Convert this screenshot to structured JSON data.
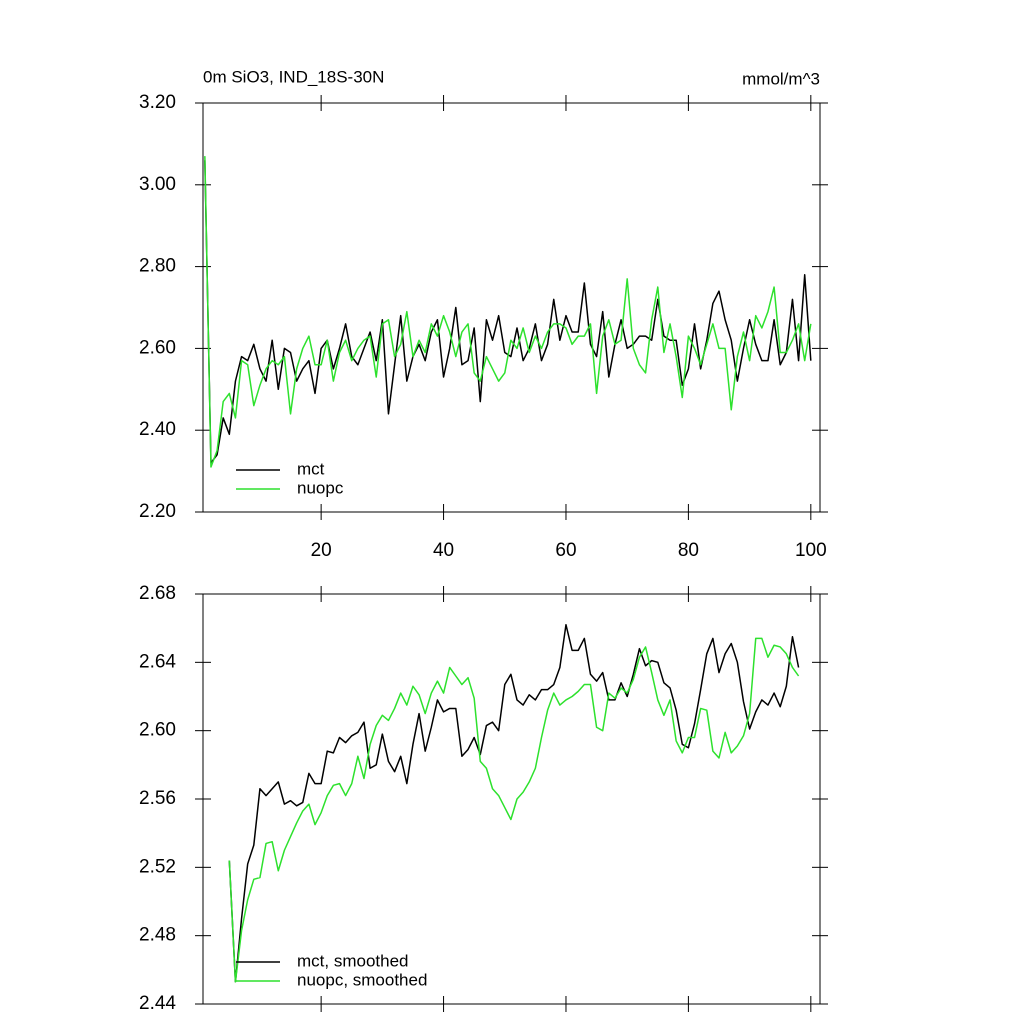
{
  "chart_data": [
    {
      "type": "line",
      "title": "0m SiO3, IND_18S-30N",
      "units": "mmol/m^3",
      "x": [
        1,
        2,
        3,
        4,
        5,
        6,
        7,
        8,
        9,
        10,
        11,
        12,
        13,
        14,
        15,
        16,
        17,
        18,
        19,
        20,
        21,
        22,
        23,
        24,
        25,
        26,
        27,
        28,
        29,
        30,
        31,
        32,
        33,
        34,
        35,
        36,
        37,
        38,
        39,
        40,
        41,
        42,
        43,
        44,
        45,
        46,
        47,
        48,
        49,
        50,
        51,
        52,
        53,
        54,
        55,
        56,
        57,
        58,
        59,
        60,
        61,
        62,
        63,
        64,
        65,
        66,
        67,
        68,
        69,
        70,
        71,
        72,
        73,
        74,
        75,
        76,
        77,
        78,
        79,
        80,
        81,
        82,
        83,
        84,
        85,
        86,
        87,
        88,
        89,
        90,
        91,
        92,
        93,
        94,
        95,
        96,
        97,
        98,
        99,
        100
      ],
      "series": [
        {
          "name": "mct",
          "color": "#000000",
          "values": [
            3.06,
            2.32,
            2.34,
            2.43,
            2.39,
            2.52,
            2.58,
            2.57,
            2.61,
            2.55,
            2.52,
            2.62,
            2.5,
            2.6,
            2.59,
            2.52,
            2.55,
            2.57,
            2.49,
            2.6,
            2.62,
            2.55,
            2.6,
            2.66,
            2.58,
            2.56,
            2.6,
            2.64,
            2.57,
            2.67,
            2.44,
            2.56,
            2.68,
            2.52,
            2.58,
            2.61,
            2.57,
            2.64,
            2.67,
            2.53,
            2.6,
            2.7,
            2.56,
            2.57,
            2.65,
            2.47,
            2.67,
            2.62,
            2.68,
            2.59,
            2.58,
            2.65,
            2.57,
            2.6,
            2.66,
            2.57,
            2.61,
            2.72,
            2.62,
            2.68,
            2.64,
            2.64,
            2.76,
            2.61,
            2.58,
            2.69,
            2.53,
            2.61,
            2.67,
            2.6,
            2.61,
            2.63,
            2.63,
            2.62,
            2.72,
            2.63,
            2.62,
            2.62,
            2.51,
            2.55,
            2.66,
            2.55,
            2.62,
            2.71,
            2.74,
            2.67,
            2.62,
            2.52,
            2.6,
            2.67,
            2.61,
            2.57,
            2.57,
            2.67,
            2.56,
            2.59,
            2.72,
            2.57,
            2.78,
            2.57
          ]
        },
        {
          "name": "nuopc",
          "color": "#2de12d",
          "values": [
            3.07,
            2.31,
            2.35,
            2.47,
            2.49,
            2.43,
            2.57,
            2.56,
            2.46,
            2.51,
            2.55,
            2.57,
            2.56,
            2.58,
            2.44,
            2.55,
            2.6,
            2.63,
            2.56,
            2.56,
            2.62,
            2.52,
            2.59,
            2.62,
            2.57,
            2.6,
            2.62,
            2.63,
            2.53,
            2.66,
            2.67,
            2.58,
            2.61,
            2.69,
            2.58,
            2.62,
            2.59,
            2.66,
            2.63,
            2.68,
            2.64,
            2.58,
            2.64,
            2.66,
            2.54,
            2.52,
            2.58,
            2.55,
            2.52,
            2.54,
            2.62,
            2.6,
            2.65,
            2.59,
            2.63,
            2.6,
            2.64,
            2.66,
            2.66,
            2.65,
            2.61,
            2.63,
            2.63,
            2.66,
            2.49,
            2.63,
            2.67,
            2.61,
            2.62,
            2.77,
            2.6,
            2.56,
            2.54,
            2.67,
            2.75,
            2.59,
            2.66,
            2.58,
            2.48,
            2.63,
            2.6,
            2.56,
            2.61,
            2.66,
            2.6,
            2.6,
            2.45,
            2.58,
            2.64,
            2.57,
            2.68,
            2.65,
            2.69,
            2.75,
            2.59,
            2.59,
            2.62,
            2.66,
            2.57,
            2.66
          ]
        }
      ],
      "xlim": [
        0.7,
        101.5
      ],
      "xticks": [
        20,
        40,
        60,
        80,
        100
      ],
      "xtick_labels": true,
      "ylim": [
        2.2,
        3.2
      ],
      "yticks": [
        {
          "value": 2.2,
          "label": "2.20"
        },
        {
          "value": 2.4,
          "label": "2.40"
        },
        {
          "value": 2.6,
          "label": "2.60"
        },
        {
          "value": 2.8,
          "label": "2.80"
        },
        {
          "value": 3.0,
          "label": "3.00"
        },
        {
          "value": 3.2,
          "label": "3.20"
        }
      ],
      "legend": "lower left"
    },
    {
      "type": "line",
      "x": [
        5,
        6,
        7,
        8,
        9,
        10,
        11,
        12,
        13,
        14,
        15,
        16,
        17,
        18,
        19,
        20,
        21,
        22,
        23,
        24,
        25,
        26,
        27,
        28,
        29,
        30,
        31,
        32,
        33,
        34,
        35,
        36,
        37,
        38,
        39,
        40,
        41,
        42,
        43,
        44,
        45,
        46,
        47,
        48,
        49,
        50,
        51,
        52,
        53,
        54,
        55,
        56,
        57,
        58,
        59,
        60,
        61,
        62,
        63,
        64,
        65,
        66,
        67,
        68,
        69,
        70,
        71,
        72,
        73,
        74,
        75,
        76,
        77,
        78,
        79,
        80,
        81,
        82,
        83,
        84,
        85,
        86,
        87,
        88,
        89,
        90,
        91,
        92,
        93,
        94,
        95,
        96,
        97,
        98
      ],
      "series": [
        {
          "name": "mct, smoothed",
          "color": "#000000",
          "values": [
            2.524,
            2.453,
            2.49,
            2.522,
            2.533,
            2.566,
            2.562,
            2.566,
            2.57,
            2.557,
            2.559,
            2.556,
            2.558,
            2.575,
            2.569,
            2.569,
            2.588,
            2.587,
            2.596,
            2.593,
            2.597,
            2.599,
            2.605,
            2.578,
            2.58,
            2.598,
            2.582,
            2.576,
            2.585,
            2.569,
            2.592,
            2.61,
            2.588,
            2.602,
            2.618,
            2.611,
            2.613,
            2.613,
            2.585,
            2.589,
            2.596,
            2.586,
            2.603,
            2.605,
            2.6,
            2.627,
            2.633,
            2.618,
            2.615,
            2.621,
            2.618,
            2.624,
            2.624,
            2.627,
            2.637,
            2.662,
            2.647,
            2.647,
            2.654,
            2.633,
            2.629,
            2.634,
            2.618,
            2.618,
            2.628,
            2.62,
            2.633,
            2.648,
            2.638,
            2.641,
            2.64,
            2.628,
            2.625,
            2.612,
            2.592,
            2.59,
            2.604,
            2.624,
            2.645,
            2.654,
            2.634,
            2.645,
            2.651,
            2.64,
            2.617,
            2.601,
            2.611,
            2.618,
            2.615,
            2.622,
            2.614,
            2.626,
            2.655,
            2.637
          ]
        },
        {
          "name": "nuopc, smoothed",
          "color": "#2de12d",
          "values": [
            2.524,
            2.453,
            2.483,
            2.501,
            2.513,
            2.514,
            2.534,
            2.535,
            2.518,
            2.53,
            2.538,
            2.546,
            2.553,
            2.557,
            2.545,
            2.552,
            2.562,
            2.568,
            2.569,
            2.562,
            2.569,
            2.585,
            2.572,
            2.592,
            2.603,
            2.609,
            2.606,
            2.613,
            2.622,
            2.615,
            2.626,
            2.621,
            2.61,
            2.622,
            2.629,
            2.622,
            2.637,
            2.632,
            2.627,
            2.631,
            2.619,
            2.582,
            2.578,
            2.566,
            2.562,
            2.555,
            2.548,
            2.56,
            2.564,
            2.57,
            2.578,
            2.596,
            2.612,
            2.622,
            2.615,
            2.618,
            2.62,
            2.623,
            2.627,
            2.627,
            2.602,
            2.6,
            2.622,
            2.619,
            2.625,
            2.622,
            2.63,
            2.643,
            2.649,
            2.634,
            2.618,
            2.609,
            2.618,
            2.594,
            2.587,
            2.596,
            2.596,
            2.613,
            2.612,
            2.588,
            2.584,
            2.599,
            2.587,
            2.591,
            2.597,
            2.61,
            2.654,
            2.654,
            2.643,
            2.65,
            2.649,
            2.645,
            2.637,
            2.632
          ]
        }
      ],
      "xlim": [
        0.7,
        101.5
      ],
      "xticks": [
        20,
        40,
        60,
        80,
        100
      ],
      "xtick_labels": false,
      "ylim": [
        2.44,
        2.68
      ],
      "yticks": [
        2.44,
        2.48,
        2.52,
        2.56,
        2.6,
        2.64,
        2.68
      ],
      "ytick_labels": [
        {
          "value": 2.44,
          "label": "2.44"
        },
        {
          "value": 2.48,
          "label": "2.48"
        },
        {
          "value": 2.52,
          "label": "2.52"
        },
        {
          "value": 2.56,
          "label": "2.56"
        },
        {
          "value": 2.6,
          "label": "2.60"
        },
        {
          "value": 2.64,
          "label": "2.64"
        },
        {
          "value": 2.68,
          "label": "2.68"
        }
      ],
      "legend": "lower left"
    }
  ]
}
